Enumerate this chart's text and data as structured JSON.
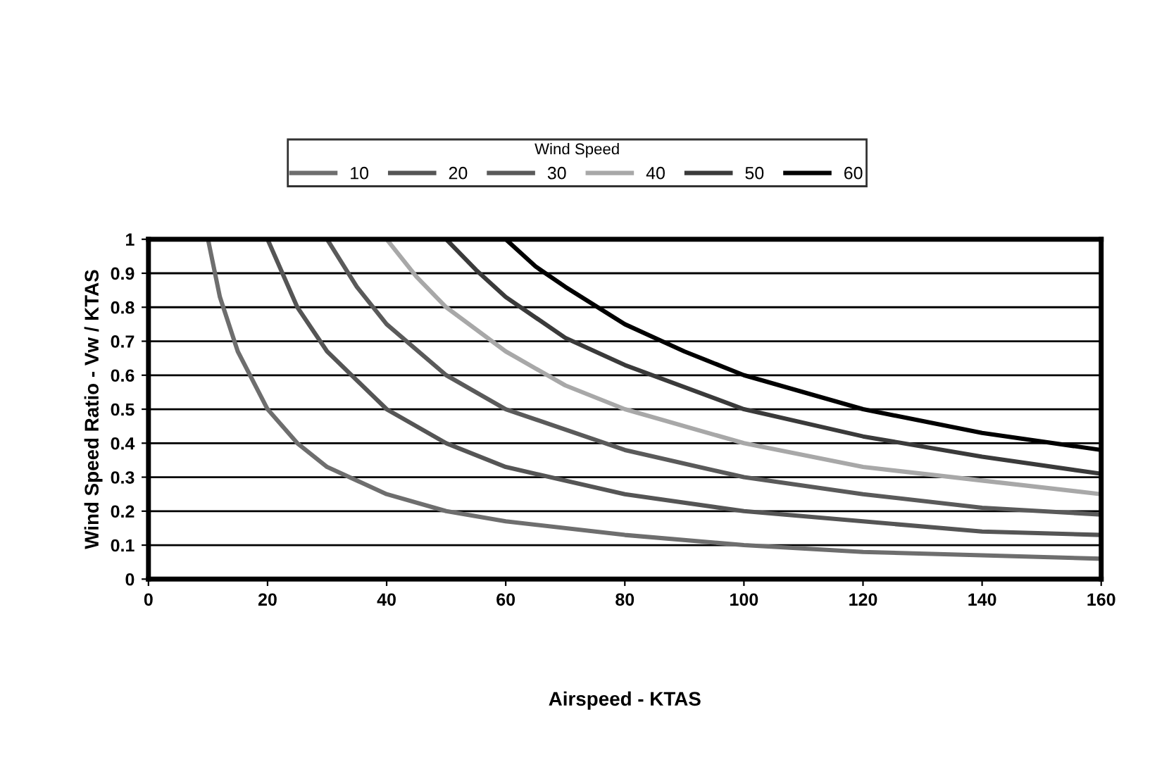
{
  "chart_data": {
    "type": "line",
    "xlabel": "Airspeed - KTAS",
    "ylabel": "Wind Speed Ratio - Vw / KTAS",
    "legend_title": "Wind Speed",
    "series": [
      {
        "name": "10",
        "color": "#6e6e6e",
        "x": [
          10,
          12,
          15,
          20,
          25,
          30,
          40,
          50,
          60,
          80,
          100,
          120,
          140,
          160
        ],
        "values": [
          1,
          0.83,
          0.67,
          0.5,
          0.4,
          0.33,
          0.25,
          0.2,
          0.17,
          0.13,
          0.1,
          0.08,
          0.07,
          0.06
        ]
      },
      {
        "name": "20",
        "color": "#555555",
        "x": [
          20,
          25,
          30,
          40,
          50,
          60,
          80,
          100,
          120,
          140,
          160
        ],
        "values": [
          1,
          0.8,
          0.67,
          0.5,
          0.4,
          0.33,
          0.25,
          0.2,
          0.17,
          0.14,
          0.13
        ]
      },
      {
        "name": "30",
        "color": "#5a5a5a",
        "x": [
          30,
          35,
          40,
          50,
          60,
          80,
          100,
          120,
          140,
          160
        ],
        "values": [
          1,
          0.86,
          0.75,
          0.6,
          0.5,
          0.38,
          0.3,
          0.25,
          0.21,
          0.19
        ]
      },
      {
        "name": "40",
        "color": "#a8a8a8",
        "x": [
          40,
          45,
          50,
          60,
          70,
          80,
          100,
          120,
          140,
          160
        ],
        "values": [
          1,
          0.89,
          0.8,
          0.67,
          0.57,
          0.5,
          0.4,
          0.33,
          0.29,
          0.25
        ]
      },
      {
        "name": "50",
        "color": "#3a3a3a",
        "x": [
          50,
          55,
          60,
          70,
          80,
          100,
          120,
          140,
          160
        ],
        "values": [
          1,
          0.91,
          0.83,
          0.71,
          0.63,
          0.5,
          0.42,
          0.36,
          0.31
        ]
      },
      {
        "name": "60",
        "color": "#000000",
        "x": [
          60,
          65,
          70,
          80,
          90,
          100,
          120,
          140,
          160
        ],
        "values": [
          1,
          0.92,
          0.86,
          0.75,
          0.67,
          0.6,
          0.5,
          0.43,
          0.38
        ]
      }
    ],
    "xlim": [
      0,
      160
    ],
    "xticks": [
      0,
      20,
      40,
      60,
      80,
      100,
      120,
      140,
      160
    ],
    "ylim": [
      0,
      1
    ],
    "yticks": [
      0,
      0.1,
      0.2,
      0.3,
      0.4,
      0.5,
      0.6,
      0.7,
      0.8,
      0.9,
      1
    ],
    "grid": "y",
    "legend": "top",
    "line_style": "solid",
    "marker": "none"
  }
}
